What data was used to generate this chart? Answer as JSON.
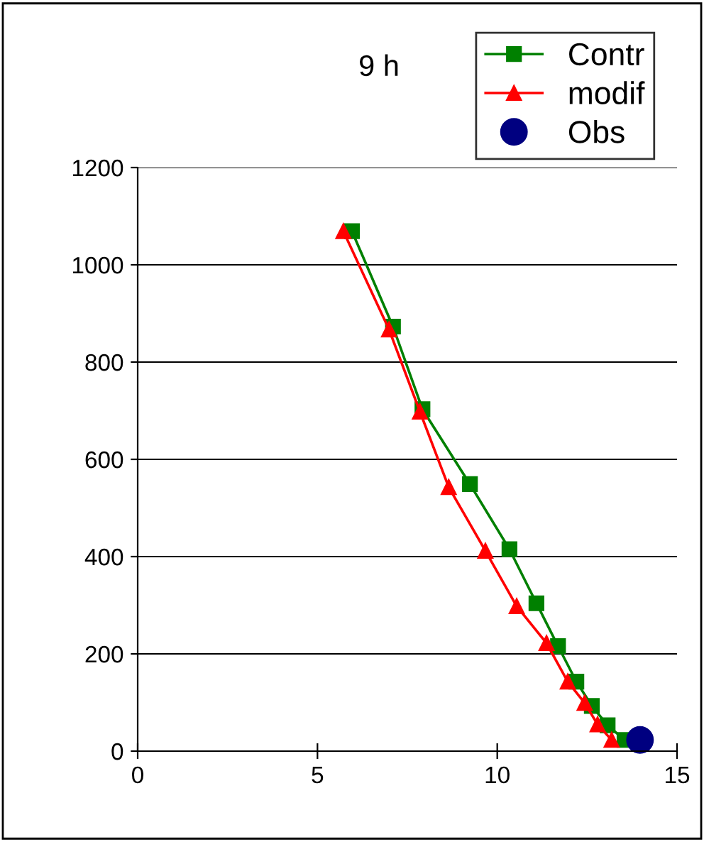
{
  "chart_data": {
    "type": "line",
    "title": "9 h",
    "xlim": [
      0,
      15
    ],
    "xticks": [
      0,
      5,
      10,
      15
    ],
    "ylim": [
      0,
      1200
    ],
    "yticks": [
      0,
      200,
      400,
      600,
      800,
      1000,
      1200
    ],
    "grid": "y",
    "legend": "top right",
    "series": [
      {
        "name": "Contr",
        "color": "#008000",
        "marker": "square",
        "x": [
          5.96,
          7.1,
          7.92,
          9.24,
          10.34,
          11.09,
          11.69,
          12.2,
          12.63,
          13.07,
          13.54
        ],
        "values": [
          1069,
          873,
          703,
          549,
          415,
          304,
          216,
          143,
          93,
          53,
          23
        ]
      },
      {
        "name": "modif",
        "color": "#ff0000",
        "marker": "triangle",
        "x": [
          5.72,
          6.99,
          7.85,
          8.65,
          9.67,
          10.54,
          11.37,
          11.96,
          12.43,
          12.79,
          13.18
        ],
        "values": [
          1069,
          867,
          698,
          543,
          412,
          298,
          222,
          143,
          99,
          55,
          23
        ]
      },
      {
        "name": "Obs",
        "color": "#000080",
        "type": "scatter",
        "marker": "circle",
        "x": [
          13.97
        ],
        "values": [
          23
        ]
      }
    ]
  }
}
